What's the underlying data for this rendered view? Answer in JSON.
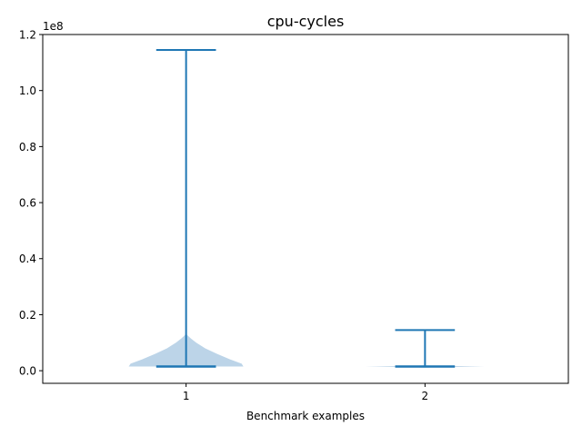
{
  "chart_data": {
    "type": "violin",
    "title": "cpu-cycles",
    "xlabel": "Benchmark examples",
    "ylabel": "",
    "y_offset_label": "1e8",
    "y_scale": 100000000,
    "xlim": [
      0.4,
      2.6
    ],
    "ylim": [
      -4500000,
      120000000
    ],
    "x_ticks": [
      1,
      2
    ],
    "x_tick_labels": [
      "1",
      "2"
    ],
    "y_ticks": [
      0,
      20000000,
      40000000,
      60000000,
      80000000,
      100000000,
      120000000
    ],
    "y_tick_labels": [
      "0.0",
      "0.2",
      "0.4",
      "0.6",
      "0.8",
      "1.0",
      "1.2"
    ],
    "grid": false,
    "colors": {
      "body": "#bcd4e8",
      "line": "#1f77b4",
      "axes": "#000000"
    },
    "violins": [
      {
        "position": 1,
        "min": 1500000,
        "max": 114500000,
        "profile": [
          [
            1500000,
            0.96
          ],
          [
            2500000,
            0.93
          ],
          [
            4000000,
            0.74
          ],
          [
            6000000,
            0.52
          ],
          [
            8000000,
            0.32
          ],
          [
            10000000,
            0.17
          ],
          [
            11500000,
            0.08
          ],
          [
            12500000,
            0.03
          ],
          [
            13200000,
            0.0
          ]
        ]
      },
      {
        "position": 2,
        "min": 1500000,
        "max": 14500000,
        "profile": [
          [
            1100000,
            0.0
          ],
          [
            1300000,
            0.3
          ],
          [
            1500000,
            1.0
          ],
          [
            1700000,
            0.3
          ],
          [
            1900000,
            0.0
          ]
        ]
      }
    ]
  }
}
